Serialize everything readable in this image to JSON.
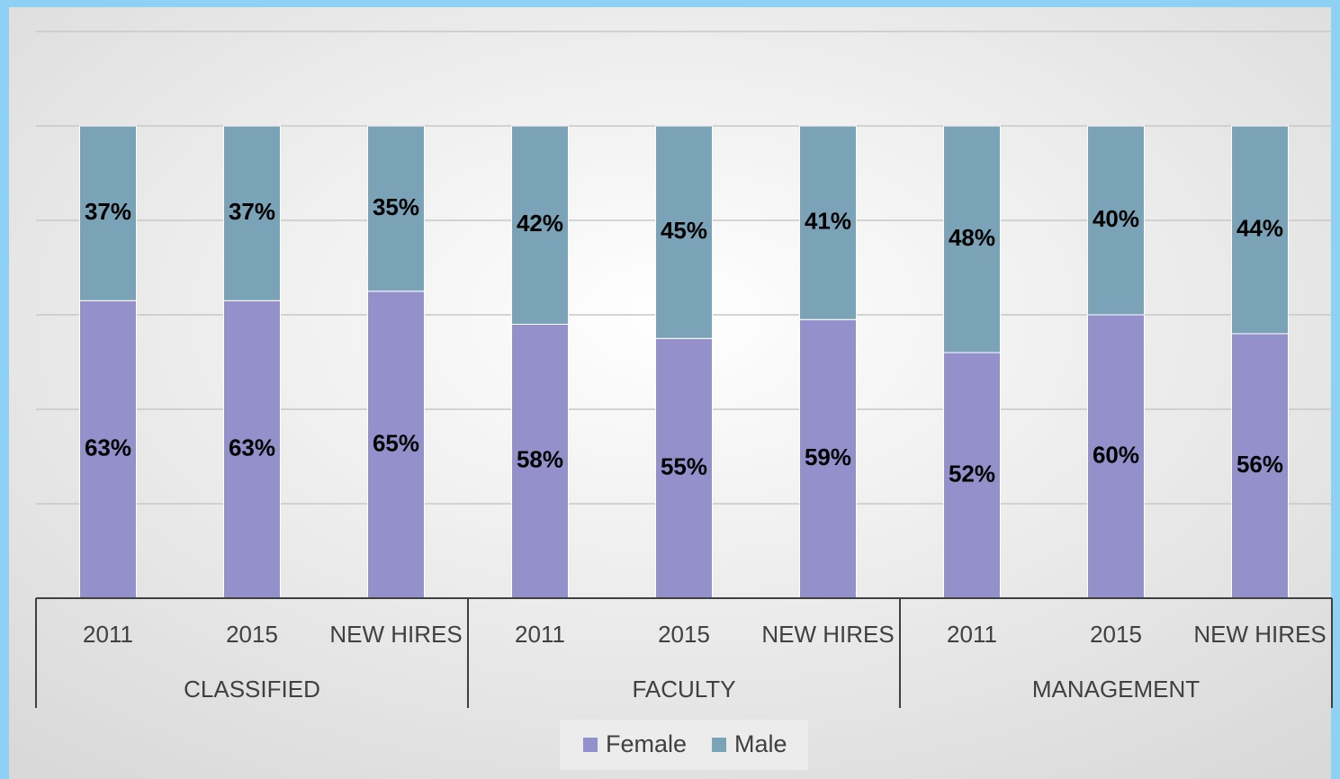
{
  "chart_data": {
    "type": "stacked_bar",
    "categories": [
      "2011",
      "2015",
      "NEW HIRES",
      "2011",
      "2015",
      "NEW HIRES",
      "2011",
      "2015",
      "NEW HIRES"
    ],
    "groups": [
      "CLASSIFIED",
      "FACULTY",
      "MANAGEMENT"
    ],
    "series": [
      {
        "name": "Female",
        "color": "#9490cc",
        "values": [
          63,
          63,
          65,
          58,
          55,
          59,
          52,
          60,
          56
        ],
        "value_labels": [
          "63%",
          "63%",
          "65%",
          "58%",
          "55%",
          "59%",
          "52%",
          "60%",
          "56%"
        ]
      },
      {
        "name": "Male",
        "color": "#7ba3b8",
        "values": [
          37,
          37,
          35,
          42,
          45,
          41,
          48,
          40,
          44
        ],
        "value_labels": [
          "37%",
          "37%",
          "35%",
          "42%",
          "45%",
          "41%",
          "48%",
          "40%",
          "44%"
        ]
      }
    ],
    "ylim": [
      0,
      120
    ],
    "yticks": [
      0,
      20,
      40,
      60,
      80,
      100,
      120
    ],
    "grid": true,
    "legend": "bottom"
  }
}
